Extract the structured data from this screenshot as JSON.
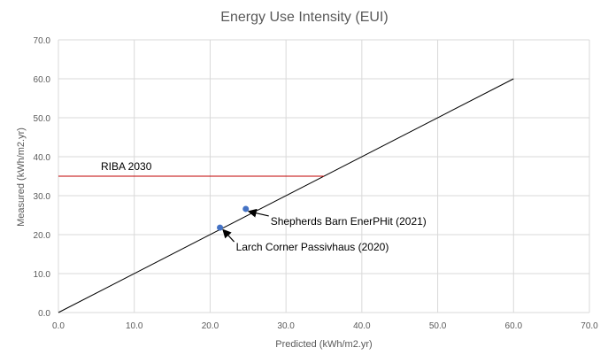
{
  "chart_data": {
    "type": "scatter",
    "title": "Energy Use Intensity (EUI)",
    "xlabel": "Predicted (kWh/m2.yr)",
    "ylabel": "Measured (kWh/m2.yr)",
    "xlim": [
      0,
      70
    ],
    "ylim": [
      0,
      70
    ],
    "x_ticks": [
      "0.0",
      "10.0",
      "20.0",
      "30.0",
      "40.0",
      "50.0",
      "60.0",
      "70.0"
    ],
    "y_ticks": [
      "0.0",
      "10.0",
      "20.0",
      "30.0",
      "40.0",
      "50.0",
      "60.0",
      "70.0"
    ],
    "grid": true,
    "series": [
      {
        "type": "scatter",
        "color": "#4472C4",
        "points": [
          {
            "x": 21.3,
            "y": 21.8
          },
          {
            "x": 24.7,
            "y": 26.6
          }
        ]
      }
    ],
    "reference_lines": [
      {
        "kind": "identity",
        "color": "#000000",
        "from": [
          0,
          0
        ],
        "to": [
          60,
          60
        ]
      },
      {
        "kind": "horizontal",
        "label": "RIBA 2030",
        "color": "#C00000",
        "y": 35,
        "x_from": 0,
        "x_to": 35
      }
    ],
    "annotations": [
      {
        "text": "Shepherds Barn EnerPHit (2021)",
        "target": {
          "x": 24.7,
          "y": 26.6
        }
      },
      {
        "text": "Larch Corner Passivhaus (2020)",
        "target": {
          "x": 21.3,
          "y": 21.8
        }
      }
    ]
  }
}
